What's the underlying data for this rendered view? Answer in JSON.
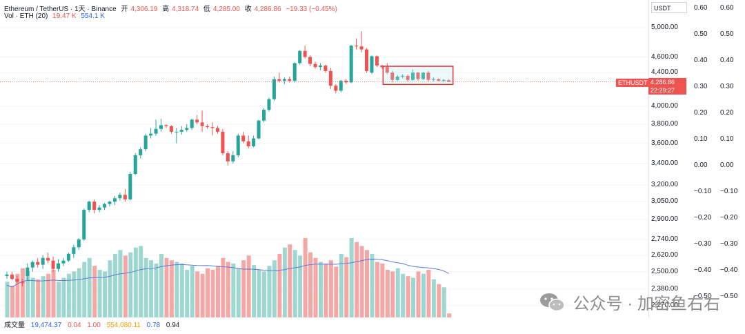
{
  "legend": {
    "symbol": "Ethereum / TetherUS · 1天 · Binance",
    "open_label": "开",
    "open": "4,306.19",
    "high_label": "高",
    "high": "4,318.74",
    "low_label": "低",
    "low": "4,285.00",
    "close_label": "收",
    "close": "4,286.86",
    "change": "−19.33 (−0.45%)",
    "vol_label": "Vol · ETH (20)",
    "vol_value": "19.47 K",
    "vol_ma": "554.1 K"
  },
  "price_axis": {
    "unit": "USDT",
    "labels": [
      "5,000.00",
      "4,600.00",
      "4,400.00",
      "4,000.00",
      "3,800.00",
      "3,600.00",
      "3,400.00",
      "3,200.00",
      "3,050.00",
      "2,900.00",
      "2,740.00",
      "2,620.00",
      "2,500.00",
      "2,380.00",
      "2,270.00"
    ],
    "symbol_tag": "ETHUSDT",
    "last_price": "4,286.86",
    "countdown": "22:29:27"
  },
  "secondary_axis_labels": [
    "0.60",
    "0.50",
    "0.40",
    "0.30",
    "0.20",
    "0.10",
    "0.00",
    "−0.10",
    "−0.20",
    "−0.30",
    "−0.40",
    "−0.50"
  ],
  "bottom_bar": {
    "label": "成交量",
    "v1": "19,474.37",
    "v2": "0.04",
    "v3": "1.00",
    "v4": "554,080.11",
    "v5": "0.78",
    "v6": "0.94"
  },
  "watermark": "公众号 · 加密鱼右右",
  "colors": {
    "up": "#26a69a",
    "down": "#ef5350",
    "vol_up": "#9ed6d0",
    "vol_down": "#f4a7a5",
    "ma": "#5b7bd9",
    "highlight": "#e5333a"
  },
  "chart_data": {
    "type": "candlestick",
    "price_unit": "USDT",
    "candles": [
      [
        2470,
        2500,
        2450,
        2480
      ],
      [
        2480,
        2500,
        2440,
        2450
      ],
      [
        2450,
        2470,
        2420,
        2430
      ],
      [
        2430,
        2450,
        2400,
        2420
      ],
      [
        2470,
        2560,
        2440,
        2530
      ],
      [
        2530,
        2580,
        2500,
        2570
      ],
      [
        2570,
        2600,
        2530,
        2550
      ],
      [
        2550,
        2620,
        2520,
        2600
      ],
      [
        2600,
        2640,
        2560,
        2580
      ],
      [
        2580,
        2610,
        2500,
        2520
      ],
      [
        2520,
        2590,
        2500,
        2560
      ],
      [
        2560,
        2600,
        2540,
        2580
      ],
      [
        2580,
        2640,
        2570,
        2630
      ],
      [
        2630,
        2700,
        2600,
        2680
      ],
      [
        2680,
        2750,
        2660,
        2740
      ],
      [
        2740,
        2990,
        2730,
        2980
      ],
      [
        2980,
        3060,
        2960,
        3050
      ],
      [
        3050,
        3070,
        2950,
        2980
      ],
      [
        2980,
        3020,
        2960,
        3000
      ],
      [
        3000,
        3040,
        2980,
        3030
      ],
      [
        3030,
        3060,
        3010,
        3050
      ],
      [
        3050,
        3100,
        3020,
        3080
      ],
      [
        3080,
        3130,
        3060,
        3110
      ],
      [
        3110,
        3160,
        3050,
        3070
      ],
      [
        3070,
        3320,
        3060,
        3300
      ],
      [
        3300,
        3500,
        3290,
        3480
      ],
      [
        3480,
        3560,
        3450,
        3540
      ],
      [
        3540,
        3700,
        3520,
        3680
      ],
      [
        3680,
        3760,
        3650,
        3700
      ],
      [
        3700,
        3850,
        3680,
        3750
      ],
      [
        3750,
        3860,
        3720,
        3790
      ],
      [
        3790,
        3800,
        3760,
        3780
      ],
      [
        3780,
        3790,
        3700,
        3720
      ],
      [
        3720,
        3760,
        3600,
        3720
      ],
      [
        3720,
        3780,
        3690,
        3740
      ],
      [
        3740,
        3800,
        3720,
        3760
      ],
      [
        3760,
        3860,
        3740,
        3850
      ],
      [
        3850,
        3900,
        3800,
        3820
      ],
      [
        3820,
        3950,
        3720,
        3780
      ],
      [
        3780,
        3800,
        3750,
        3770
      ],
      [
        3770,
        3820,
        3680,
        3760
      ],
      [
        3760,
        3780,
        3700,
        3720
      ],
      [
        3720,
        3750,
        3480,
        3500
      ],
      [
        3500,
        3520,
        3380,
        3420
      ],
      [
        3420,
        3520,
        3400,
        3480
      ],
      [
        3480,
        3700,
        3460,
        3680
      ],
      [
        3680,
        3720,
        3600,
        3620
      ],
      [
        3620,
        3680,
        3550,
        3570
      ],
      [
        3570,
        3680,
        3560,
        3650
      ],
      [
        3650,
        3850,
        3640,
        3840
      ],
      [
        3840,
        3980,
        3820,
        3960
      ],
      [
        3960,
        4100,
        3940,
        4080
      ],
      [
        4080,
        4350,
        4060,
        4320
      ],
      [
        4320,
        4400,
        4280,
        4300
      ],
      [
        4300,
        4340,
        4260,
        4320
      ],
      [
        4320,
        4350,
        4280,
        4300
      ],
      [
        4300,
        4530,
        4280,
        4520
      ],
      [
        4520,
        4690,
        4500,
        4680
      ],
      [
        4680,
        4750,
        4580,
        4600
      ],
      [
        4600,
        4620,
        4480,
        4510
      ],
      [
        4510,
        4540,
        4450,
        4470
      ],
      [
        4470,
        4520,
        4430,
        4490
      ],
      [
        4490,
        4500,
        4400,
        4420
      ],
      [
        4420,
        4460,
        4200,
        4240
      ],
      [
        4240,
        4260,
        4150,
        4180
      ],
      [
        4180,
        4310,
        4160,
        4300
      ],
      [
        4300,
        4320,
        4260,
        4280
      ],
      [
        4280,
        4760,
        4270,
        4750
      ],
      [
        4750,
        4850,
        4700,
        4740
      ],
      [
        4740,
        4950,
        4660,
        4700
      ],
      [
        4700,
        4720,
        4400,
        4420
      ],
      [
        4400,
        4620,
        4380,
        4610
      ],
      [
        4610,
        4620,
        4470,
        4490
      ],
      [
        4490,
        4500,
        4450,
        4470
      ],
      [
        4470,
        4520,
        4380,
        4400
      ],
      [
        4400,
        4420,
        4280,
        4310
      ],
      [
        4310,
        4370,
        4300,
        4350
      ],
      [
        4350,
        4380,
        4330,
        4360
      ],
      [
        4360,
        4380,
        4290,
        4310
      ],
      [
        4310,
        4440,
        4300,
        4400
      ],
      [
        4400,
        4410,
        4300,
        4320
      ],
      [
        4320,
        4410,
        4310,
        4400
      ],
      [
        4400,
        4420,
        4290,
        4310
      ],
      [
        4310,
        4340,
        4290,
        4320
      ],
      [
        4320,
        4330,
        4290,
        4300
      ],
      [
        4300,
        4320,
        4280,
        4310
      ],
      [
        4306.19,
        4318.74,
        4285,
        4286.86
      ]
    ],
    "volume_relative": [
      0.45,
      0.4,
      0.55,
      0.62,
      0.58,
      0.5,
      0.48,
      0.52,
      0.55,
      0.6,
      0.45,
      0.5,
      0.55,
      0.58,
      0.62,
      0.7,
      0.75,
      0.65,
      0.6,
      0.58,
      0.72,
      0.8,
      0.85,
      0.78,
      0.82,
      0.88,
      0.9,
      0.75,
      0.72,
      0.68,
      0.8,
      0.75,
      0.72,
      0.7,
      0.68,
      0.6,
      0.65,
      0.58,
      0.55,
      0.62,
      0.6,
      0.65,
      0.75,
      0.7,
      0.68,
      0.62,
      0.72,
      0.78,
      0.66,
      0.6,
      0.58,
      0.65,
      0.72,
      0.8,
      0.88,
      0.92,
      0.85,
      0.78,
      1.0,
      0.82,
      0.75,
      0.7,
      0.68,
      0.72,
      0.64,
      0.8,
      0.76,
      1.0,
      0.95,
      0.9,
      0.85,
      0.8,
      0.7,
      0.68,
      0.6,
      0.58,
      0.62,
      0.55,
      0.52,
      0.5,
      0.58,
      0.55,
      0.6,
      0.48,
      0.42,
      0.38,
      0.05
    ],
    "price_range": [
      2270,
      5050
    ],
    "scale": "log"
  }
}
